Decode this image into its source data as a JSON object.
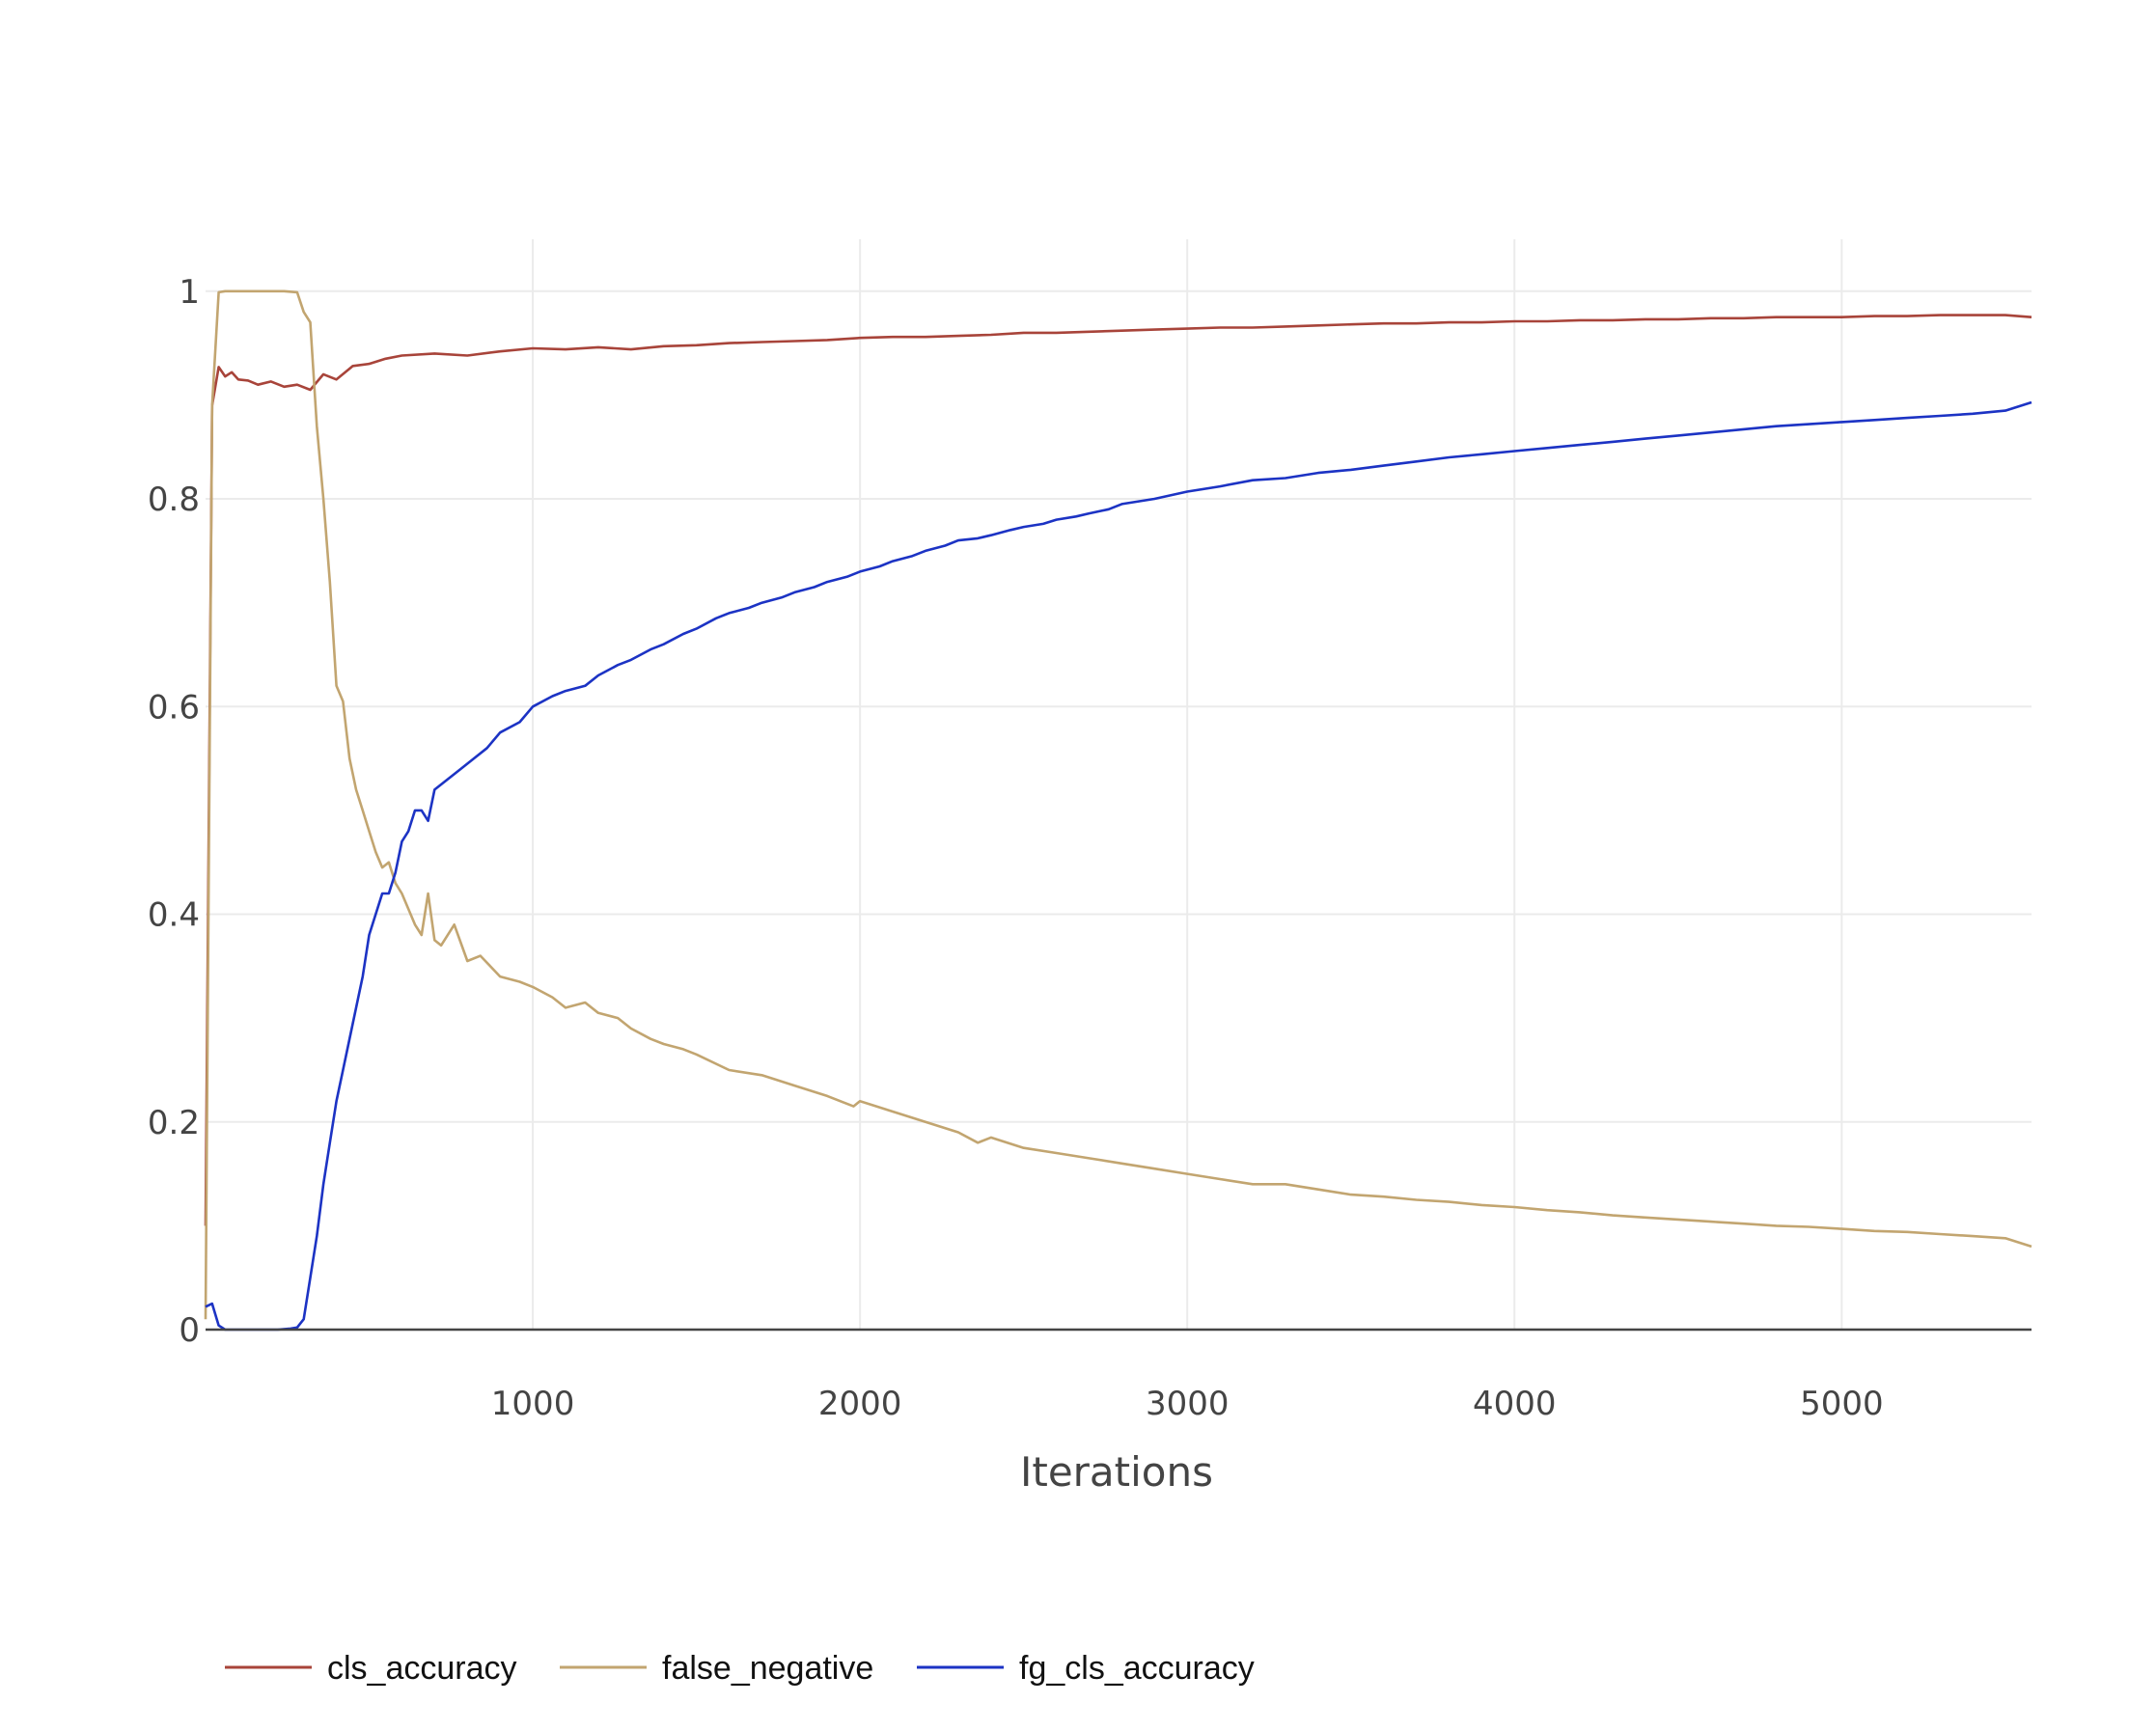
{
  "chart_data": {
    "type": "line",
    "title": "",
    "xlabel": "Iterations",
    "ylabel": "",
    "xlim": [
      0,
      5580
    ],
    "ylim": [
      0,
      1.05
    ],
    "x_ticks": [
      "1000",
      "2000",
      "3000",
      "4000",
      "5000"
    ],
    "y_ticks": [
      "0",
      "0.2",
      "0.4",
      "0.6",
      "0.8",
      "1"
    ],
    "grid": true,
    "legend_position": "bottom-left",
    "series": [
      {
        "name": "cls_accuracy",
        "color": "#a8443a",
        "x": [
          0,
          20,
          40,
          60,
          80,
          100,
          130,
          160,
          200,
          240,
          280,
          320,
          360,
          400,
          450,
          500,
          550,
          600,
          700,
          800,
          900,
          1000,
          1100,
          1200,
          1300,
          1400,
          1500,
          1600,
          1700,
          1800,
          1900,
          2000,
          2100,
          2200,
          2300,
          2400,
          2500,
          2600,
          2700,
          2800,
          2900,
          3000,
          3100,
          3200,
          3300,
          3400,
          3500,
          3600,
          3700,
          3800,
          3900,
          4000,
          4100,
          4200,
          4300,
          4400,
          4500,
          4600,
          4700,
          4800,
          4900,
          5000,
          5100,
          5200,
          5300,
          5400,
          5500,
          5580
        ],
        "y": [
          0.1,
          0.89,
          0.927,
          0.918,
          0.922,
          0.915,
          0.914,
          0.91,
          0.913,
          0.908,
          0.91,
          0.905,
          0.92,
          0.915,
          0.928,
          0.93,
          0.935,
          0.938,
          0.94,
          0.938,
          0.942,
          0.945,
          0.944,
          0.946,
          0.944,
          0.947,
          0.948,
          0.95,
          0.951,
          0.952,
          0.953,
          0.955,
          0.956,
          0.956,
          0.957,
          0.958,
          0.96,
          0.96,
          0.961,
          0.962,
          0.963,
          0.964,
          0.965,
          0.965,
          0.966,
          0.967,
          0.968,
          0.969,
          0.969,
          0.97,
          0.97,
          0.971,
          0.971,
          0.972,
          0.972,
          0.973,
          0.973,
          0.974,
          0.974,
          0.975,
          0.975,
          0.975,
          0.976,
          0.976,
          0.977,
          0.977,
          0.977,
          0.975
        ]
      },
      {
        "name": "false_negative",
        "color": "#c2a570",
        "x": [
          0,
          20,
          40,
          60,
          80,
          120,
          160,
          200,
          240,
          280,
          300,
          320,
          340,
          360,
          380,
          400,
          420,
          440,
          460,
          480,
          500,
          520,
          540,
          560,
          580,
          600,
          620,
          640,
          660,
          680,
          700,
          720,
          760,
          800,
          840,
          900,
          960,
          1000,
          1060,
          1100,
          1160,
          1200,
          1260,
          1300,
          1360,
          1400,
          1460,
          1500,
          1600,
          1700,
          1800,
          1900,
          1980,
          2000,
          2100,
          2200,
          2300,
          2360,
          2400,
          2500,
          2600,
          2700,
          2800,
          2900,
          3000,
          3100,
          3200,
          3300,
          3400,
          3500,
          3600,
          3700,
          3800,
          3900,
          4000,
          4100,
          4200,
          4300,
          4400,
          4500,
          4600,
          4700,
          4800,
          4900,
          5000,
          5100,
          5200,
          5300,
          5400,
          5500,
          5580
        ],
        "y": [
          0.01,
          0.89,
          0.999,
          1.0,
          1.0,
          1.0,
          1.0,
          1.0,
          1.0,
          0.999,
          0.98,
          0.97,
          0.87,
          0.8,
          0.72,
          0.62,
          0.605,
          0.55,
          0.52,
          0.5,
          0.48,
          0.46,
          0.445,
          0.45,
          0.43,
          0.42,
          0.405,
          0.39,
          0.38,
          0.42,
          0.375,
          0.37,
          0.39,
          0.355,
          0.36,
          0.34,
          0.335,
          0.33,
          0.32,
          0.31,
          0.315,
          0.305,
          0.3,
          0.29,
          0.28,
          0.275,
          0.27,
          0.265,
          0.25,
          0.245,
          0.235,
          0.225,
          0.215,
          0.22,
          0.21,
          0.2,
          0.19,
          0.18,
          0.185,
          0.175,
          0.17,
          0.165,
          0.16,
          0.155,
          0.15,
          0.145,
          0.14,
          0.14,
          0.135,
          0.13,
          0.128,
          0.125,
          0.123,
          0.12,
          0.118,
          0.115,
          0.113,
          0.11,
          0.108,
          0.106,
          0.104,
          0.102,
          0.1,
          0.099,
          0.097,
          0.095,
          0.094,
          0.092,
          0.09,
          0.088,
          0.08
        ]
      },
      {
        "name": "fg_cls_accuracy",
        "color": "#1c33c4",
        "x": [
          0,
          20,
          40,
          60,
          100,
          140,
          180,
          220,
          260,
          280,
          300,
          320,
          340,
          360,
          380,
          400,
          420,
          440,
          460,
          480,
          500,
          520,
          540,
          560,
          580,
          600,
          620,
          640,
          660,
          680,
          700,
          740,
          780,
          820,
          860,
          900,
          960,
          1000,
          1060,
          1100,
          1160,
          1200,
          1260,
          1300,
          1360,
          1400,
          1460,
          1500,
          1560,
          1600,
          1660,
          1700,
          1760,
          1800,
          1860,
          1900,
          1960,
          2000,
          2060,
          2100,
          2160,
          2200,
          2260,
          2300,
          2360,
          2400,
          2460,
          2500,
          2560,
          2600,
          2660,
          2700,
          2760,
          2800,
          2900,
          3000,
          3100,
          3200,
          3300,
          3400,
          3500,
          3600,
          3700,
          3800,
          3900,
          4000,
          4100,
          4200,
          4300,
          4400,
          4500,
          4600,
          4700,
          4800,
          4900,
          5000,
          5100,
          5200,
          5300,
          5400,
          5500,
          5580
        ],
        "y": [
          0.022,
          0.025,
          0.004,
          0.0,
          0.0,
          0.0,
          0.0,
          0.0,
          0.001,
          0.002,
          0.01,
          0.05,
          0.09,
          0.14,
          0.18,
          0.22,
          0.25,
          0.28,
          0.31,
          0.34,
          0.38,
          0.4,
          0.42,
          0.42,
          0.44,
          0.47,
          0.48,
          0.5,
          0.5,
          0.49,
          0.52,
          0.53,
          0.54,
          0.55,
          0.56,
          0.575,
          0.585,
          0.6,
          0.61,
          0.615,
          0.62,
          0.63,
          0.64,
          0.645,
          0.655,
          0.66,
          0.67,
          0.675,
          0.685,
          0.69,
          0.695,
          0.7,
          0.705,
          0.71,
          0.715,
          0.72,
          0.725,
          0.73,
          0.735,
          0.74,
          0.745,
          0.75,
          0.755,
          0.76,
          0.762,
          0.765,
          0.77,
          0.773,
          0.776,
          0.78,
          0.783,
          0.786,
          0.79,
          0.795,
          0.8,
          0.807,
          0.812,
          0.818,
          0.82,
          0.825,
          0.828,
          0.832,
          0.836,
          0.84,
          0.843,
          0.846,
          0.849,
          0.852,
          0.855,
          0.858,
          0.861,
          0.864,
          0.867,
          0.87,
          0.872,
          0.874,
          0.876,
          0.878,
          0.88,
          0.882,
          0.885,
          0.893
        ]
      }
    ]
  }
}
